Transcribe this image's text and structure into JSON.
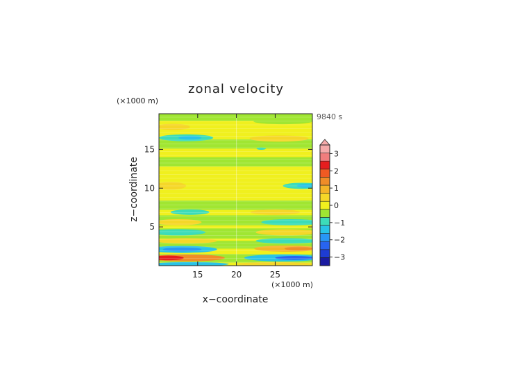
{
  "chart_data": {
    "type": "heatmap",
    "title": "zonal velocity",
    "xlabel": "x−coordinate",
    "ylabel": "z−coordinate",
    "x_unit": "(×1000 m)",
    "y_unit": "(×1000 m)",
    "time_label": "9840 s",
    "xlim": [
      10,
      29.8
    ],
    "ylim": [
      0,
      19.6
    ],
    "x_ticks": [
      15,
      20,
      25
    ],
    "y_ticks": [
      5,
      10,
      15
    ],
    "x_tick_labels": [
      "15",
      "20",
      "25"
    ],
    "y_tick_labels": [
      "5",
      "10",
      "15"
    ],
    "background_value": 0.3,
    "colorbar": {
      "levels": [
        -3.5,
        -3,
        -2.5,
        -2,
        -1.5,
        -1,
        -0.5,
        0,
        0.5,
        1,
        1.5,
        2,
        2.5,
        3,
        3.5
      ],
      "colors": [
        "#1a1aa0",
        "#1e3cd2",
        "#2864f0",
        "#2896f5",
        "#28c3e6",
        "#3cdcb9",
        "#a0e632",
        "#f0f01e",
        "#f5d728",
        "#f5b428",
        "#f08c28",
        "#f05a23",
        "#e61e1e",
        "#f07d7d",
        "#f5aaaa"
      ],
      "tick_values": [
        3,
        2,
        1,
        0,
        -1,
        -2,
        -3
      ],
      "tick_labels": [
        "3",
        "2",
        "1",
        "0",
        "−1",
        "−2",
        "−3"
      ],
      "extend": "max"
    },
    "fields": [
      {
        "kind": "band",
        "y0": 18.7,
        "y1": 19.6,
        "value": -0.3
      },
      {
        "kind": "band",
        "y0": 17.2,
        "y1": 18.1,
        "value": 0.0
      },
      {
        "kind": "band",
        "y0": 15.1,
        "y1": 16.3,
        "value": -0.2
      },
      {
        "kind": "band",
        "y0": 12.8,
        "y1": 14.0,
        "value": -0.3
      },
      {
        "kind": "band",
        "y0": 10.3,
        "y1": 12.1,
        "value": 0.1
      },
      {
        "kind": "band",
        "y0": 7.2,
        "y1": 8.4,
        "value": -0.2
      },
      {
        "kind": "band",
        "y0": 5.2,
        "y1": 6.5,
        "value": -0.2
      },
      {
        "kind": "band",
        "y0": 3.5,
        "y1": 4.8,
        "value": -0.3
      },
      {
        "kind": "band",
        "y0": 2.2,
        "y1": 3.2,
        "value": -0.3
      },
      {
        "kind": "band",
        "y0": 0.4,
        "y1": 1.5,
        "value": -0.3
      },
      {
        "kind": "blob",
        "x": 11.8,
        "y": 17.9,
        "rx": 2.2,
        "ry": 0.4,
        "value": 0.8
      },
      {
        "kind": "blob",
        "x": 13.5,
        "y": 16.5,
        "rx": 3.5,
        "ry": 0.45,
        "value": -0.8
      },
      {
        "kind": "blob",
        "x": 14.0,
        "y": 16.5,
        "rx": 1.5,
        "ry": 0.25,
        "value": -1.2
      },
      {
        "kind": "blob",
        "x": 26.0,
        "y": 18.6,
        "rx": 3.8,
        "ry": 0.35,
        "value": -0.4
      },
      {
        "kind": "blob",
        "x": 25.5,
        "y": 16.4,
        "rx": 3.8,
        "ry": 0.4,
        "value": 0.7
      },
      {
        "kind": "blob",
        "x": 23.2,
        "y": 15.1,
        "rx": 0.6,
        "ry": 0.15,
        "value": -1.0
      },
      {
        "kind": "blob",
        "x": 11.5,
        "y": 10.3,
        "rx": 2.0,
        "ry": 0.5,
        "value": 0.8
      },
      {
        "kind": "blob",
        "x": 28.5,
        "y": 10.3,
        "rx": 2.5,
        "ry": 0.4,
        "value": -0.8
      },
      {
        "kind": "blob",
        "x": 29.0,
        "y": 10.3,
        "rx": 1.2,
        "ry": 0.25,
        "value": -1.2
      },
      {
        "kind": "blob",
        "x": 28.8,
        "y": 8.1,
        "rx": 2.2,
        "ry": 0.3,
        "value": -0.4
      },
      {
        "kind": "blob",
        "x": 14.0,
        "y": 6.9,
        "rx": 2.5,
        "ry": 0.35,
        "value": -0.8
      },
      {
        "kind": "blob",
        "x": 25.0,
        "y": 6.9,
        "rx": 3.2,
        "ry": 0.35,
        "value": 0.7
      },
      {
        "kind": "blob",
        "x": 12.5,
        "y": 5.6,
        "rx": 3.0,
        "ry": 0.4,
        "value": 0.8
      },
      {
        "kind": "blob",
        "x": 27.0,
        "y": 5.6,
        "rx": 3.8,
        "ry": 0.4,
        "value": -0.8
      },
      {
        "kind": "blob",
        "x": 12.5,
        "y": 4.3,
        "rx": 3.5,
        "ry": 0.4,
        "value": -0.8
      },
      {
        "kind": "blob",
        "x": 26.5,
        "y": 4.3,
        "rx": 4.0,
        "ry": 0.4,
        "value": 0.8
      },
      {
        "kind": "blob",
        "x": 13.5,
        "y": 3.2,
        "rx": 4.0,
        "ry": 0.35,
        "value": 0.8
      },
      {
        "kind": "blob",
        "x": 26.5,
        "y": 3.2,
        "rx": 4.0,
        "ry": 0.35,
        "value": -0.8
      },
      {
        "kind": "blob",
        "x": 13.0,
        "y": 2.1,
        "rx": 4.5,
        "ry": 0.45,
        "value": -1.2
      },
      {
        "kind": "blob",
        "x": 13.0,
        "y": 2.1,
        "rx": 2.5,
        "ry": 0.25,
        "value": -1.8
      },
      {
        "kind": "blob",
        "x": 26.5,
        "y": 2.2,
        "rx": 4.2,
        "ry": 0.4,
        "value": 1.0
      },
      {
        "kind": "blob",
        "x": 28.0,
        "y": 2.2,
        "rx": 1.8,
        "ry": 0.25,
        "value": 1.8
      },
      {
        "kind": "blob",
        "x": 13.5,
        "y": 1.0,
        "rx": 5.0,
        "ry": 0.45,
        "value": 1.8
      },
      {
        "kind": "blob",
        "x": 11.2,
        "y": 1.0,
        "rx": 2.0,
        "ry": 0.3,
        "value": 2.6
      },
      {
        "kind": "blob",
        "x": 26.0,
        "y": 1.0,
        "rx": 5.0,
        "ry": 0.45,
        "value": -1.2
      },
      {
        "kind": "blob",
        "x": 27.5,
        "y": 1.0,
        "rx": 2.5,
        "ry": 0.25,
        "value": -2.3
      },
      {
        "kind": "blob",
        "x": 14.0,
        "y": 0.2,
        "rx": 5.0,
        "ry": 0.25,
        "value": -1.5
      },
      {
        "kind": "blob",
        "x": 25.0,
        "y": 0.2,
        "rx": 5.0,
        "ry": 0.25,
        "value": 0.8
      }
    ]
  }
}
